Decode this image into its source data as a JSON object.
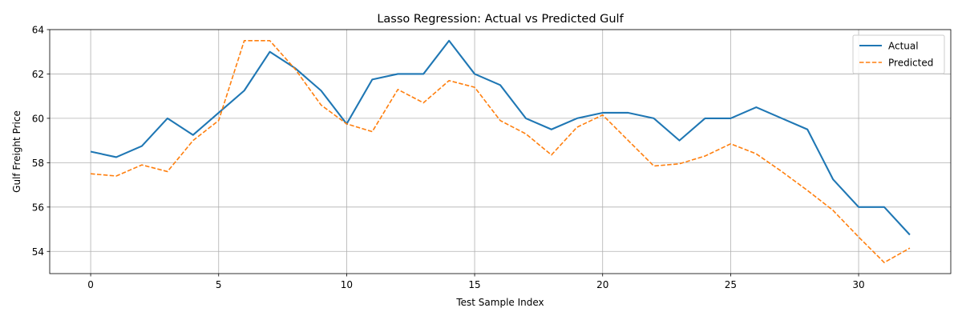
{
  "chart_data": {
    "type": "line",
    "title": "Lasso Regression: Actual vs Predicted Gulf",
    "xlabel": "Test Sample Index",
    "ylabel": "Gulf Freight Price",
    "xlim": [
      -1.6,
      33.6
    ],
    "ylim": [
      53,
      64
    ],
    "xticks": [
      0,
      5,
      10,
      15,
      20,
      25,
      30
    ],
    "yticks": [
      54,
      56,
      58,
      60,
      62,
      64
    ],
    "grid": true,
    "legend_position": "top-right",
    "x": [
      0,
      1,
      2,
      3,
      4,
      5,
      6,
      7,
      8,
      9,
      10,
      11,
      12,
      13,
      14,
      15,
      16,
      17,
      18,
      19,
      20,
      21,
      22,
      23,
      24,
      25,
      26,
      27,
      28,
      29,
      30,
      31,
      32
    ],
    "series": [
      {
        "name": "Actual",
        "style": "solid",
        "color": "#1f77b4",
        "values": [
          58.5,
          58.25,
          58.75,
          60.0,
          59.25,
          60.25,
          61.25,
          63.0,
          62.25,
          61.25,
          59.75,
          61.75,
          62.0,
          62.0,
          63.5,
          62.0,
          61.5,
          60.0,
          59.5,
          60.0,
          60.25,
          60.25,
          60.0,
          59.0,
          60.0,
          60.0,
          60.5,
          60.0,
          59.5,
          57.25,
          56.0,
          56.0,
          54.75
        ]
      },
      {
        "name": "Predicted",
        "style": "dashed",
        "color": "#ff7f0e",
        "values": [
          57.5,
          57.4,
          57.9,
          57.6,
          59.0,
          59.9,
          63.5,
          63.5,
          62.2,
          60.6,
          59.75,
          59.4,
          61.3,
          60.7,
          61.7,
          61.4,
          59.9,
          59.3,
          58.35,
          59.6,
          60.15,
          59.0,
          57.85,
          57.95,
          58.3,
          58.85,
          58.4,
          57.6,
          56.75,
          55.85,
          54.65,
          53.5,
          54.15
        ]
      }
    ]
  }
}
